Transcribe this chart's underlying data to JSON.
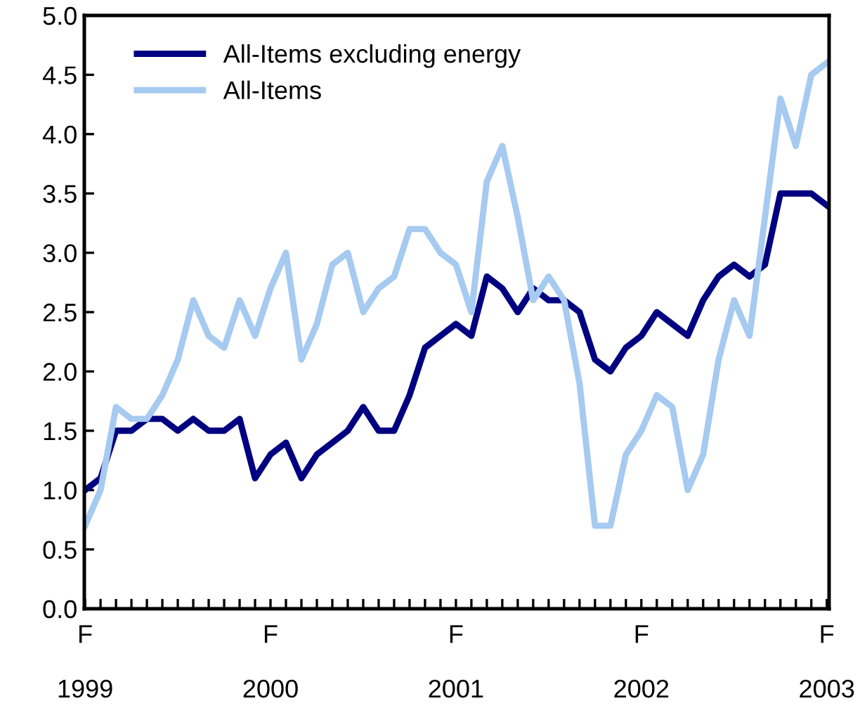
{
  "chart_data": {
    "type": "line",
    "categories": [
      "F\n\n1999",
      null,
      null,
      null,
      null,
      null,
      null,
      null,
      null,
      null,
      null,
      null,
      "F\n\n2000",
      null,
      null,
      null,
      null,
      null,
      null,
      null,
      null,
      null,
      null,
      null,
      "F\n\n2001",
      null,
      null,
      null,
      null,
      null,
      null,
      null,
      null,
      null,
      null,
      null,
      "F\n\n2002",
      null,
      null,
      null,
      null,
      null,
      null,
      null,
      null,
      null,
      null,
      null,
      "F\n\n2003"
    ],
    "series": [
      {
        "name": "All-Items excluding energy",
        "color": "#000080",
        "values": [
          1.0,
          1.1,
          1.5,
          1.5,
          1.6,
          1.6,
          1.5,
          1.6,
          1.5,
          1.5,
          1.6,
          1.1,
          1.3,
          1.4,
          1.1,
          1.3,
          1.4,
          1.5,
          1.7,
          1.5,
          1.5,
          1.8,
          2.2,
          2.3,
          2.4,
          2.3,
          2.8,
          2.7,
          2.5,
          2.7,
          2.6,
          2.6,
          2.5,
          2.1,
          2.0,
          2.2,
          2.3,
          2.5,
          2.4,
          2.3,
          2.6,
          2.8,
          2.9,
          2.8,
          2.9,
          3.5,
          3.5,
          3.5,
          3.4
        ]
      },
      {
        "name": "All-Items",
        "color": "#a6caf0",
        "values": [
          0.7,
          1.0,
          1.7,
          1.6,
          1.6,
          1.8,
          2.1,
          2.6,
          2.3,
          2.2,
          2.6,
          2.3,
          2.7,
          3.0,
          2.1,
          2.4,
          2.9,
          3.0,
          2.5,
          2.7,
          2.8,
          3.2,
          3.2,
          3.0,
          2.9,
          2.5,
          3.6,
          3.9,
          3.3,
          2.6,
          2.8,
          2.6,
          1.9,
          0.7,
          0.7,
          1.3,
          1.5,
          1.8,
          1.7,
          1.0,
          1.3,
          2.1,
          2.6,
          2.3,
          3.3,
          4.3,
          3.9,
          4.5,
          4.6
        ]
      }
    ],
    "ylim": [
      0,
      5
    ],
    "yticks": [
      {
        "value": 0,
        "label": "0.0"
      },
      {
        "value": 0.5,
        "label": "0.5"
      },
      {
        "value": 1,
        "label": "1.0"
      },
      {
        "value": 1.5,
        "label": "1.5"
      },
      {
        "value": 2,
        "label": "2.0"
      },
      {
        "value": 2.5,
        "label": "2.5"
      },
      {
        "value": 3,
        "label": "3.0"
      },
      {
        "value": 3.5,
        "label": "3.5"
      },
      {
        "value": 4,
        "label": "4.0"
      },
      {
        "value": 4.5,
        "label": "4.5"
      },
      {
        "value": 5,
        "label": "5.0"
      }
    ],
    "grid": false,
    "legend": "top left",
    "marker": "none",
    "line_style": "solid"
  }
}
